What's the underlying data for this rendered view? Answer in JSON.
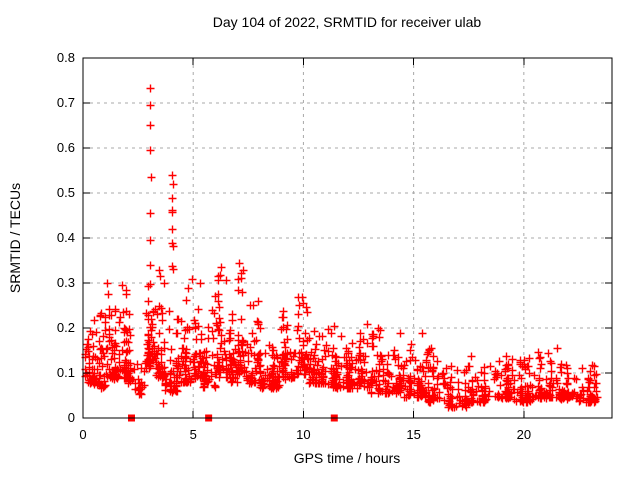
{
  "chart_data": {
    "type": "scatter",
    "title": "Day 104 of 2022, SRMTID for receiver ulab",
    "xlabel": "GPS time / hours",
    "ylabel": "SRMTID / TECUs",
    "xlim": [
      0,
      24
    ],
    "ylim": [
      0,
      0.8
    ],
    "x_ticks": [
      0,
      5,
      10,
      15,
      20
    ],
    "y_ticks": [
      0,
      0.1,
      0.2,
      0.3,
      0.4,
      0.5,
      0.6,
      0.7,
      0.8
    ],
    "grid": true,
    "legend": "none",
    "marker": "plus",
    "marker_color": "#ff0000",
    "grid_color": "#a8a8a8",
    "axis_color": "#000000",
    "background_color": "#ffffff",
    "baseline_squares_x": [
      2.2,
      5.7,
      11.4
    ],
    "outlier_points": [
      [
        3.05,
        0.733
      ],
      [
        3.05,
        0.696
      ],
      [
        3.06,
        0.651
      ],
      [
        3.05,
        0.596
      ],
      [
        3.07,
        0.536
      ],
      [
        3.05,
        0.456
      ],
      [
        3.06,
        0.396
      ],
      [
        3.04,
        0.34
      ],
      [
        4.05,
        0.54
      ],
      [
        4.07,
        0.52
      ],
      [
        4.05,
        0.49
      ],
      [
        4.06,
        0.462
      ],
      [
        4.03,
        0.458
      ],
      [
        4.06,
        0.42
      ],
      [
        4.04,
        0.388
      ],
      [
        4.08,
        0.382
      ],
      [
        4.03,
        0.338
      ],
      [
        4.07,
        0.332
      ],
      [
        1.08,
        0.3
      ],
      [
        1.12,
        0.275
      ],
      [
        1.78,
        0.295
      ],
      [
        1.95,
        0.285
      ],
      [
        3.45,
        0.33
      ],
      [
        3.5,
        0.315
      ],
      [
        3.65,
        0.033
      ],
      [
        4.95,
        0.31
      ],
      [
        5.3,
        0.3
      ],
      [
        6.25,
        0.335
      ],
      [
        6.2,
        0.318
      ],
      [
        7.1,
        0.345
      ],
      [
        7.15,
        0.322
      ],
      [
        7.05,
        0.31
      ],
      [
        9.95,
        0.27
      ],
      [
        10.0,
        0.255
      ],
      [
        12.9,
        0.21
      ],
      [
        14.4,
        0.19
      ],
      [
        15.4,
        0.19
      ],
      [
        21.5,
        0.155
      ]
    ],
    "bins_format": [
      "x_start",
      "x_end",
      "count",
      "y_min",
      "y_max"
    ],
    "density_bins": [
      [
        0.05,
        0.5,
        40,
        0.07,
        0.22
      ],
      [
        0.5,
        1.0,
        40,
        0.06,
        0.24
      ],
      [
        1.0,
        1.5,
        45,
        0.08,
        0.26
      ],
      [
        1.5,
        2.0,
        45,
        0.08,
        0.28
      ],
      [
        2.0,
        2.3,
        25,
        0.07,
        0.26
      ],
      [
        2.3,
        2.8,
        18,
        0.05,
        0.13
      ],
      [
        2.8,
        3.3,
        55,
        0.1,
        0.35
      ],
      [
        3.3,
        3.7,
        40,
        0.08,
        0.32
      ],
      [
        3.7,
        4.3,
        45,
        0.05,
        0.25
      ],
      [
        4.3,
        5.0,
        50,
        0.07,
        0.29
      ],
      [
        5.0,
        5.5,
        40,
        0.08,
        0.3
      ],
      [
        5.5,
        6.0,
        40,
        0.06,
        0.24
      ],
      [
        6.0,
        6.5,
        42,
        0.08,
        0.32
      ],
      [
        6.5,
        7.0,
        40,
        0.07,
        0.24
      ],
      [
        7.0,
        7.4,
        35,
        0.09,
        0.33
      ],
      [
        7.4,
        8.0,
        45,
        0.07,
        0.26
      ],
      [
        8.0,
        9.0,
        70,
        0.06,
        0.21
      ],
      [
        9.0,
        9.6,
        45,
        0.08,
        0.24
      ],
      [
        9.6,
        10.2,
        45,
        0.09,
        0.27
      ],
      [
        10.2,
        11.0,
        55,
        0.07,
        0.21
      ],
      [
        11.0,
        12.0,
        70,
        0.06,
        0.22
      ],
      [
        12.0,
        13.0,
        70,
        0.06,
        0.2
      ],
      [
        13.0,
        13.6,
        40,
        0.05,
        0.2
      ],
      [
        13.6,
        14.5,
        55,
        0.05,
        0.16
      ],
      [
        14.5,
        15.5,
        60,
        0.04,
        0.18
      ],
      [
        15.5,
        16.5,
        60,
        0.03,
        0.16
      ],
      [
        16.5,
        17.5,
        60,
        0.02,
        0.12
      ],
      [
        17.5,
        18.3,
        50,
        0.03,
        0.14
      ],
      [
        18.3,
        19.5,
        70,
        0.04,
        0.16
      ],
      [
        19.5,
        20.5,
        60,
        0.03,
        0.14
      ],
      [
        20.5,
        21.5,
        60,
        0.04,
        0.15
      ],
      [
        21.5,
        22.5,
        60,
        0.04,
        0.12
      ],
      [
        22.5,
        23.3,
        55,
        0.03,
        0.13
      ]
    ],
    "seed": 7
  }
}
